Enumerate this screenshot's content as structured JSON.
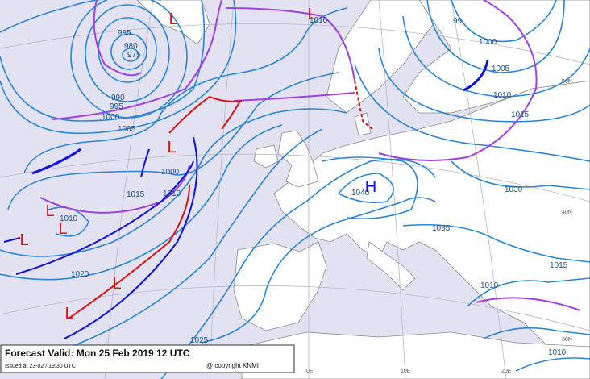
{
  "footer": {
    "forecast": "Forecast Valid:  Mon 25 Feb 2019  12 UTC",
    "issued": "Issued at 23-02 / 19:30 UTC",
    "copyright": "@ copyright KNMI"
  },
  "centers": [
    {
      "label": "L"
    },
    {
      "label": "L"
    },
    {
      "label": "L"
    },
    {
      "label": "L"
    },
    {
      "label": "L"
    },
    {
      "label": "L"
    },
    {
      "label": "L"
    },
    {
      "label": "L"
    },
    {
      "label": "H"
    }
  ],
  "isobar_labels": [
    "985",
    "980",
    "975",
    "990",
    "995",
    "1000",
    "1005",
    "1010",
    "1015",
    "1010",
    "1000",
    "1010",
    "1020",
    "1025",
    "1040",
    "1030",
    "1035",
    "1010",
    "1015",
    "1010",
    "99",
    "1000",
    "1005",
    "1010",
    "1015"
  ],
  "grid_labels": [
    "50N",
    "40N",
    "30N",
    "0E",
    "10E",
    "20E"
  ]
}
